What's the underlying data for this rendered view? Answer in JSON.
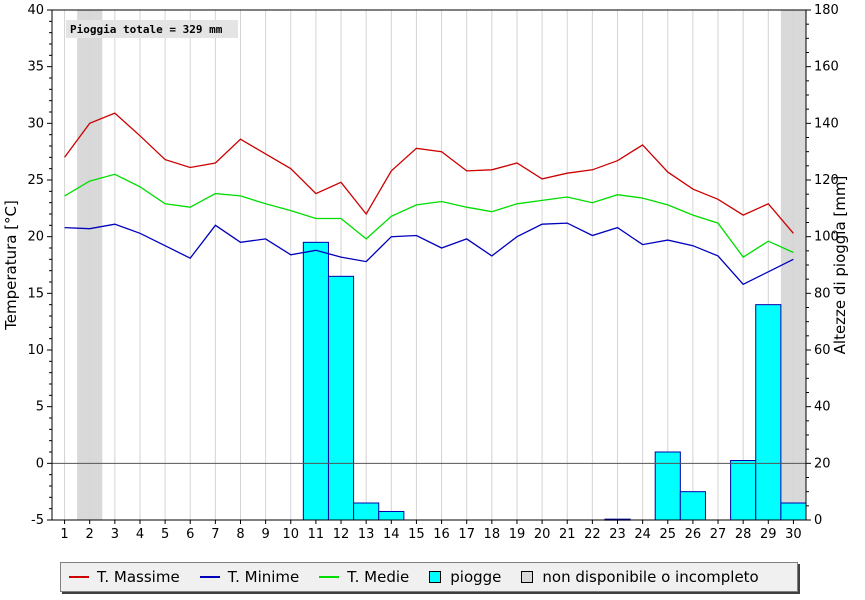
{
  "chart_data": {
    "type": "line+bar",
    "annotation": "Pioggia totale = 329 mm",
    "ylabel_left": "Temperatura [°C]",
    "ylabel_right": "Altezze di pioggia [mm]",
    "ylim_left": [
      -5,
      40
    ],
    "ylim_right": [
      0,
      180
    ],
    "yticks_left": [
      -5,
      0,
      5,
      10,
      15,
      20,
      25,
      30,
      35,
      40
    ],
    "yticks_right": [
      0,
      20,
      40,
      60,
      80,
      100,
      120,
      140,
      160,
      180
    ],
    "categories": [
      "1",
      "2",
      "3",
      "4",
      "5",
      "6",
      "7",
      "8",
      "9",
      "10",
      "11",
      "12",
      "13",
      "14",
      "15",
      "16",
      "17",
      "18",
      "19",
      "20",
      "21",
      "22",
      "23",
      "24",
      "25",
      "26",
      "27",
      "28",
      "29",
      "30"
    ],
    "grid": "vertical",
    "unavailable_days": [
      "2",
      "30"
    ],
    "series": [
      {
        "name": "T. Massime",
        "color": "#cc0000",
        "values": [
          27.0,
          30.0,
          30.9,
          28.9,
          26.8,
          26.1,
          26.5,
          28.6,
          27.3,
          26.0,
          23.8,
          24.8,
          22.0,
          25.8,
          27.8,
          27.5,
          25.8,
          25.9,
          26.5,
          25.1,
          25.6,
          25.9,
          26.7,
          28.1,
          25.7,
          24.2,
          23.3,
          21.9,
          22.9,
          20.3
        ]
      },
      {
        "name": "T. Minime",
        "color": "#0000bb",
        "values": [
          20.8,
          20.7,
          21.1,
          20.3,
          19.2,
          18.1,
          21.0,
          19.5,
          19.8,
          18.4,
          18.8,
          18.2,
          17.8,
          20.0,
          20.1,
          19.0,
          19.8,
          18.3,
          20.0,
          21.1,
          21.2,
          20.1,
          20.8,
          19.3,
          19.7,
          19.2,
          18.3,
          15.8,
          16.9,
          18.0
        ]
      },
      {
        "name": "T. Medie",
        "color": "#00dd00",
        "values": [
          23.6,
          24.9,
          25.5,
          24.4,
          22.9,
          22.6,
          23.8,
          23.6,
          22.9,
          22.3,
          21.6,
          21.6,
          19.8,
          21.8,
          22.8,
          23.1,
          22.6,
          22.2,
          22.9,
          23.2,
          23.5,
          23.0,
          23.7,
          23.4,
          22.8,
          21.9,
          21.2,
          18.2,
          19.6,
          18.6
        ]
      }
    ],
    "rain": {
      "name": "piogge",
      "color": "#00ffff",
      "unit": "mm",
      "values": [
        0,
        0,
        0,
        0,
        0,
        0,
        0,
        0,
        0,
        0,
        98,
        86,
        6,
        3,
        0,
        0,
        0,
        0,
        0,
        0,
        0,
        0,
        0.3,
        0,
        24,
        10,
        0,
        21,
        76,
        6
      ]
    }
  },
  "legend": {
    "items": [
      {
        "label": "T. Massime",
        "color": "#cc0000"
      },
      {
        "label": "T. Minime",
        "color": "#0000bb"
      },
      {
        "label": "T. Medie",
        "color": "#00dd00"
      },
      {
        "label": "piogge",
        "color": "#00ffff"
      },
      {
        "label": "non disponibile o incompleto",
        "color": "#d9d9d9"
      }
    ]
  }
}
